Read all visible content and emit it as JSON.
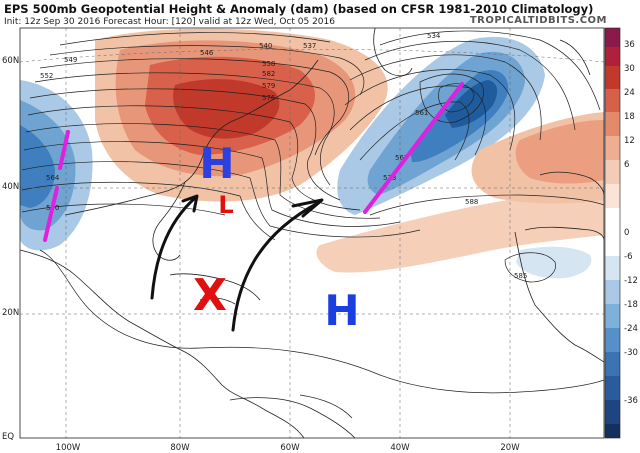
{
  "header": {
    "title": "EPS 500mb Geopotential Height & Anomaly (dam) (based on CFSR 1981-2010 Climatology)",
    "subtitle": "Init: 12z Sep 30 2016   Forecast Hour: [120]   valid at 12z Wed, Oct 05 2016",
    "source": "TROPICALTIDBITS.COM"
  },
  "map": {
    "lat_labels": [
      "60N",
      "40N",
      "20N",
      "EQ"
    ],
    "lon_labels": [
      "100W",
      "80W",
      "60W",
      "40W",
      "20W"
    ],
    "contour_labels": [
      "534",
      "540",
      "537",
      "546",
      "552",
      "558",
      "564",
      "570",
      "576",
      "582",
      "588",
      "585",
      "549",
      "561",
      "567",
      "573",
      "579"
    ],
    "annotations": {
      "high_left": "H",
      "low": "L",
      "storm_marker": "X",
      "high_center": "H"
    },
    "colors": {
      "positive_anomaly": "#c0392b",
      "negative_anomaly": "#2e6fb0",
      "annotation_blue": "#2b40e0",
      "annotation_red": "#e01010",
      "trough_line": "#e020e0",
      "arrow": "#111111"
    }
  },
  "colorbar": {
    "ticks": [
      "36",
      "30",
      "24",
      "18",
      "12",
      "6",
      "0",
      "-6",
      "-12",
      "-18",
      "-24",
      "-30",
      "-36"
    ]
  }
}
